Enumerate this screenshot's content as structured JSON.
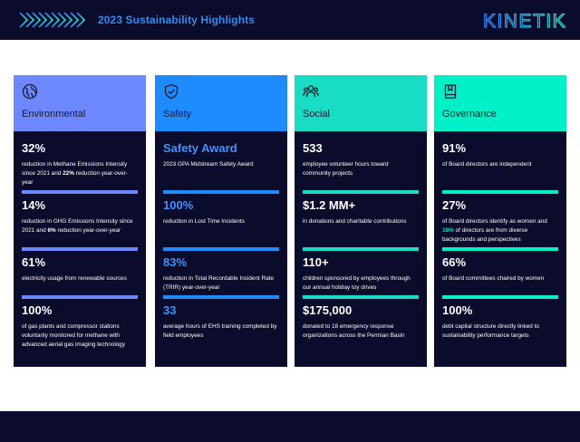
{
  "header": {
    "title": "2023 Sustainability Highlights",
    "logo_text": "KINETIK",
    "colors": {
      "background": "#0b0b2b",
      "title": "#2f8cf0"
    }
  },
  "cards": [
    {
      "title": "Environmental",
      "icon": "globe-icon",
      "color": "#6d87ff",
      "stats": [
        {
          "value": "32%",
          "desc_parts": [
            "reduction in Methane Emissions Intensity since 2021 and ",
            "22%",
            " reduction year-over-year"
          ]
        },
        {
          "value": "14%",
          "desc_parts": [
            "reduction in GHG Emissions Intensity since 2021 and ",
            "6%",
            " reduction year-over-year"
          ]
        },
        {
          "value": "61%",
          "desc_parts": [
            "electricity usage from renewable sources"
          ]
        },
        {
          "value": "100%",
          "desc_parts": [
            "of gas plants and compressor stations voluntarily monitored for methane with advanced aerial gas imaging technology"
          ]
        }
      ]
    },
    {
      "title": "Safety",
      "icon": "shield-check-icon",
      "color": "#1e8bff",
      "stats": [
        {
          "value": "Safety Award",
          "desc_parts": [
            "2023 GPA Midstream Safety Award"
          ]
        },
        {
          "value": "100%",
          "desc_parts": [
            "reduction in Lost Time Incidents"
          ]
        },
        {
          "value": "83%",
          "desc_parts": [
            "reduction in Total Recordable Incident Rate (TRIR) year-over-year"
          ]
        },
        {
          "value": "33",
          "desc_parts": [
            "average hours of EHS training completed by field employees"
          ]
        }
      ]
    },
    {
      "title": "Social",
      "icon": "people-icon",
      "color": "#19dcc4",
      "stats": [
        {
          "value": "533",
          "desc_parts": [
            "employee volunteer hours toward community projects"
          ]
        },
        {
          "value": "$1.2 MM+",
          "desc_parts": [
            "in donations and charitable contributions"
          ]
        },
        {
          "value": "110+",
          "desc_parts": [
            "children sponsored by employees through our annual holiday toy drives"
          ]
        },
        {
          "value": "$175,000",
          "desc_parts": [
            "donated to 18 emergency response organizations across the Permian Basin"
          ]
        }
      ]
    },
    {
      "title": "Governance",
      "icon": "bookmark-book-icon",
      "color": "#00f0c8",
      "stats": [
        {
          "value": "91%",
          "desc_parts": [
            "of Board directors are independent"
          ]
        },
        {
          "value": "27%",
          "desc_parts": [
            "of Board directors identify as women and ",
            "18%",
            " of directors are from diverse backgrounds and perspectives"
          ]
        },
        {
          "value": "66%",
          "desc_parts": [
            "of Board committees chaired by women"
          ]
        },
        {
          "value": "100%",
          "desc_parts": [
            "debt capital structure directly linked to sustainability performance targets"
          ]
        }
      ]
    }
  ]
}
